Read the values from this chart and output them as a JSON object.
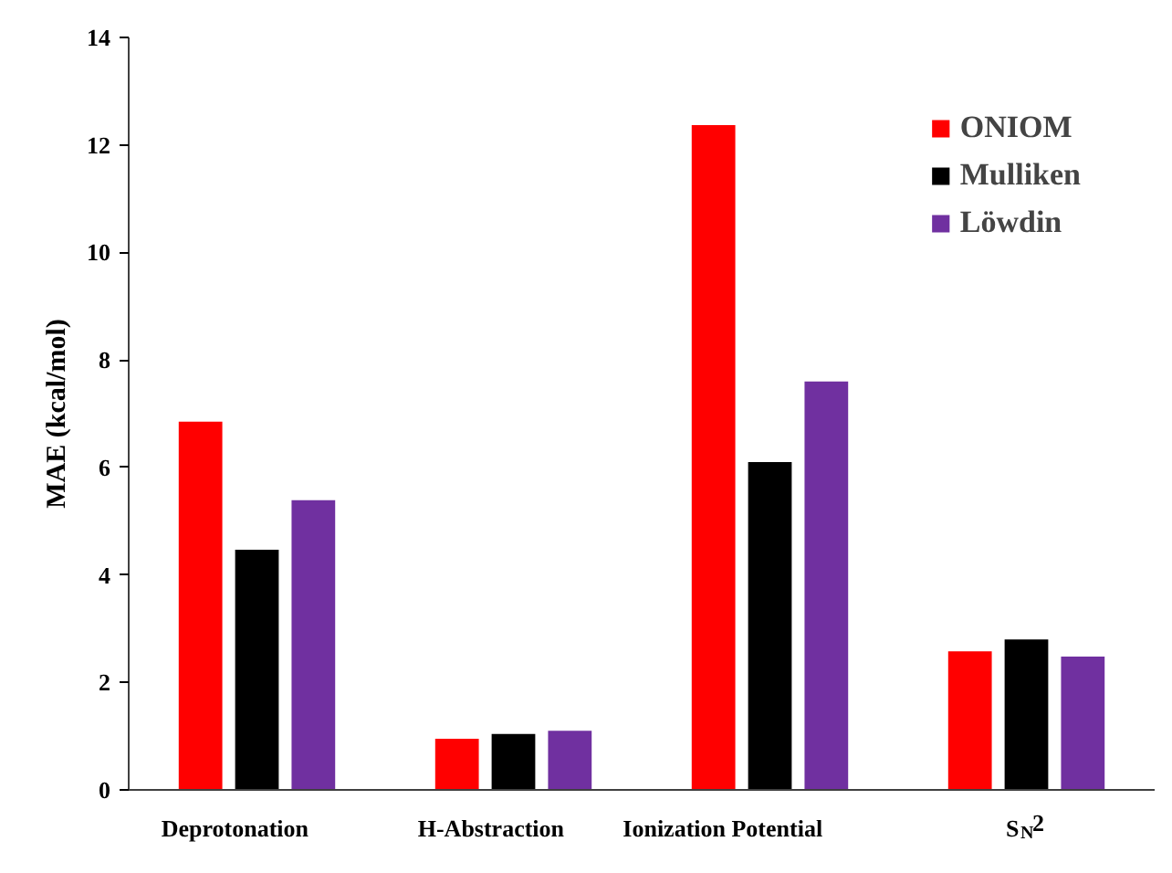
{
  "chart_data": {
    "type": "bar",
    "ylabel": "MAE (kcal/mol)",
    "categories": [
      "Deprotonation",
      "H-Abstraction",
      "Ionization Potential",
      "S$_{N}$2"
    ],
    "series": [
      {
        "name": "ONIOM",
        "color": "#ff0000",
        "values": [
          6.85,
          0.95,
          12.37,
          2.58
        ]
      },
      {
        "name": "Mulliken",
        "color": "#000000",
        "values": [
          4.47,
          1.04,
          6.1,
          2.8
        ]
      },
      {
        "name": "Löwdin",
        "color": "#7030a0",
        "values": [
          5.39,
          1.1,
          7.6,
          2.48
        ]
      }
    ],
    "ylim": [
      0,
      14
    ],
    "yticks": [
      0,
      2,
      4,
      6,
      8,
      10,
      12,
      14
    ],
    "grid": false,
    "legend": "top right"
  }
}
